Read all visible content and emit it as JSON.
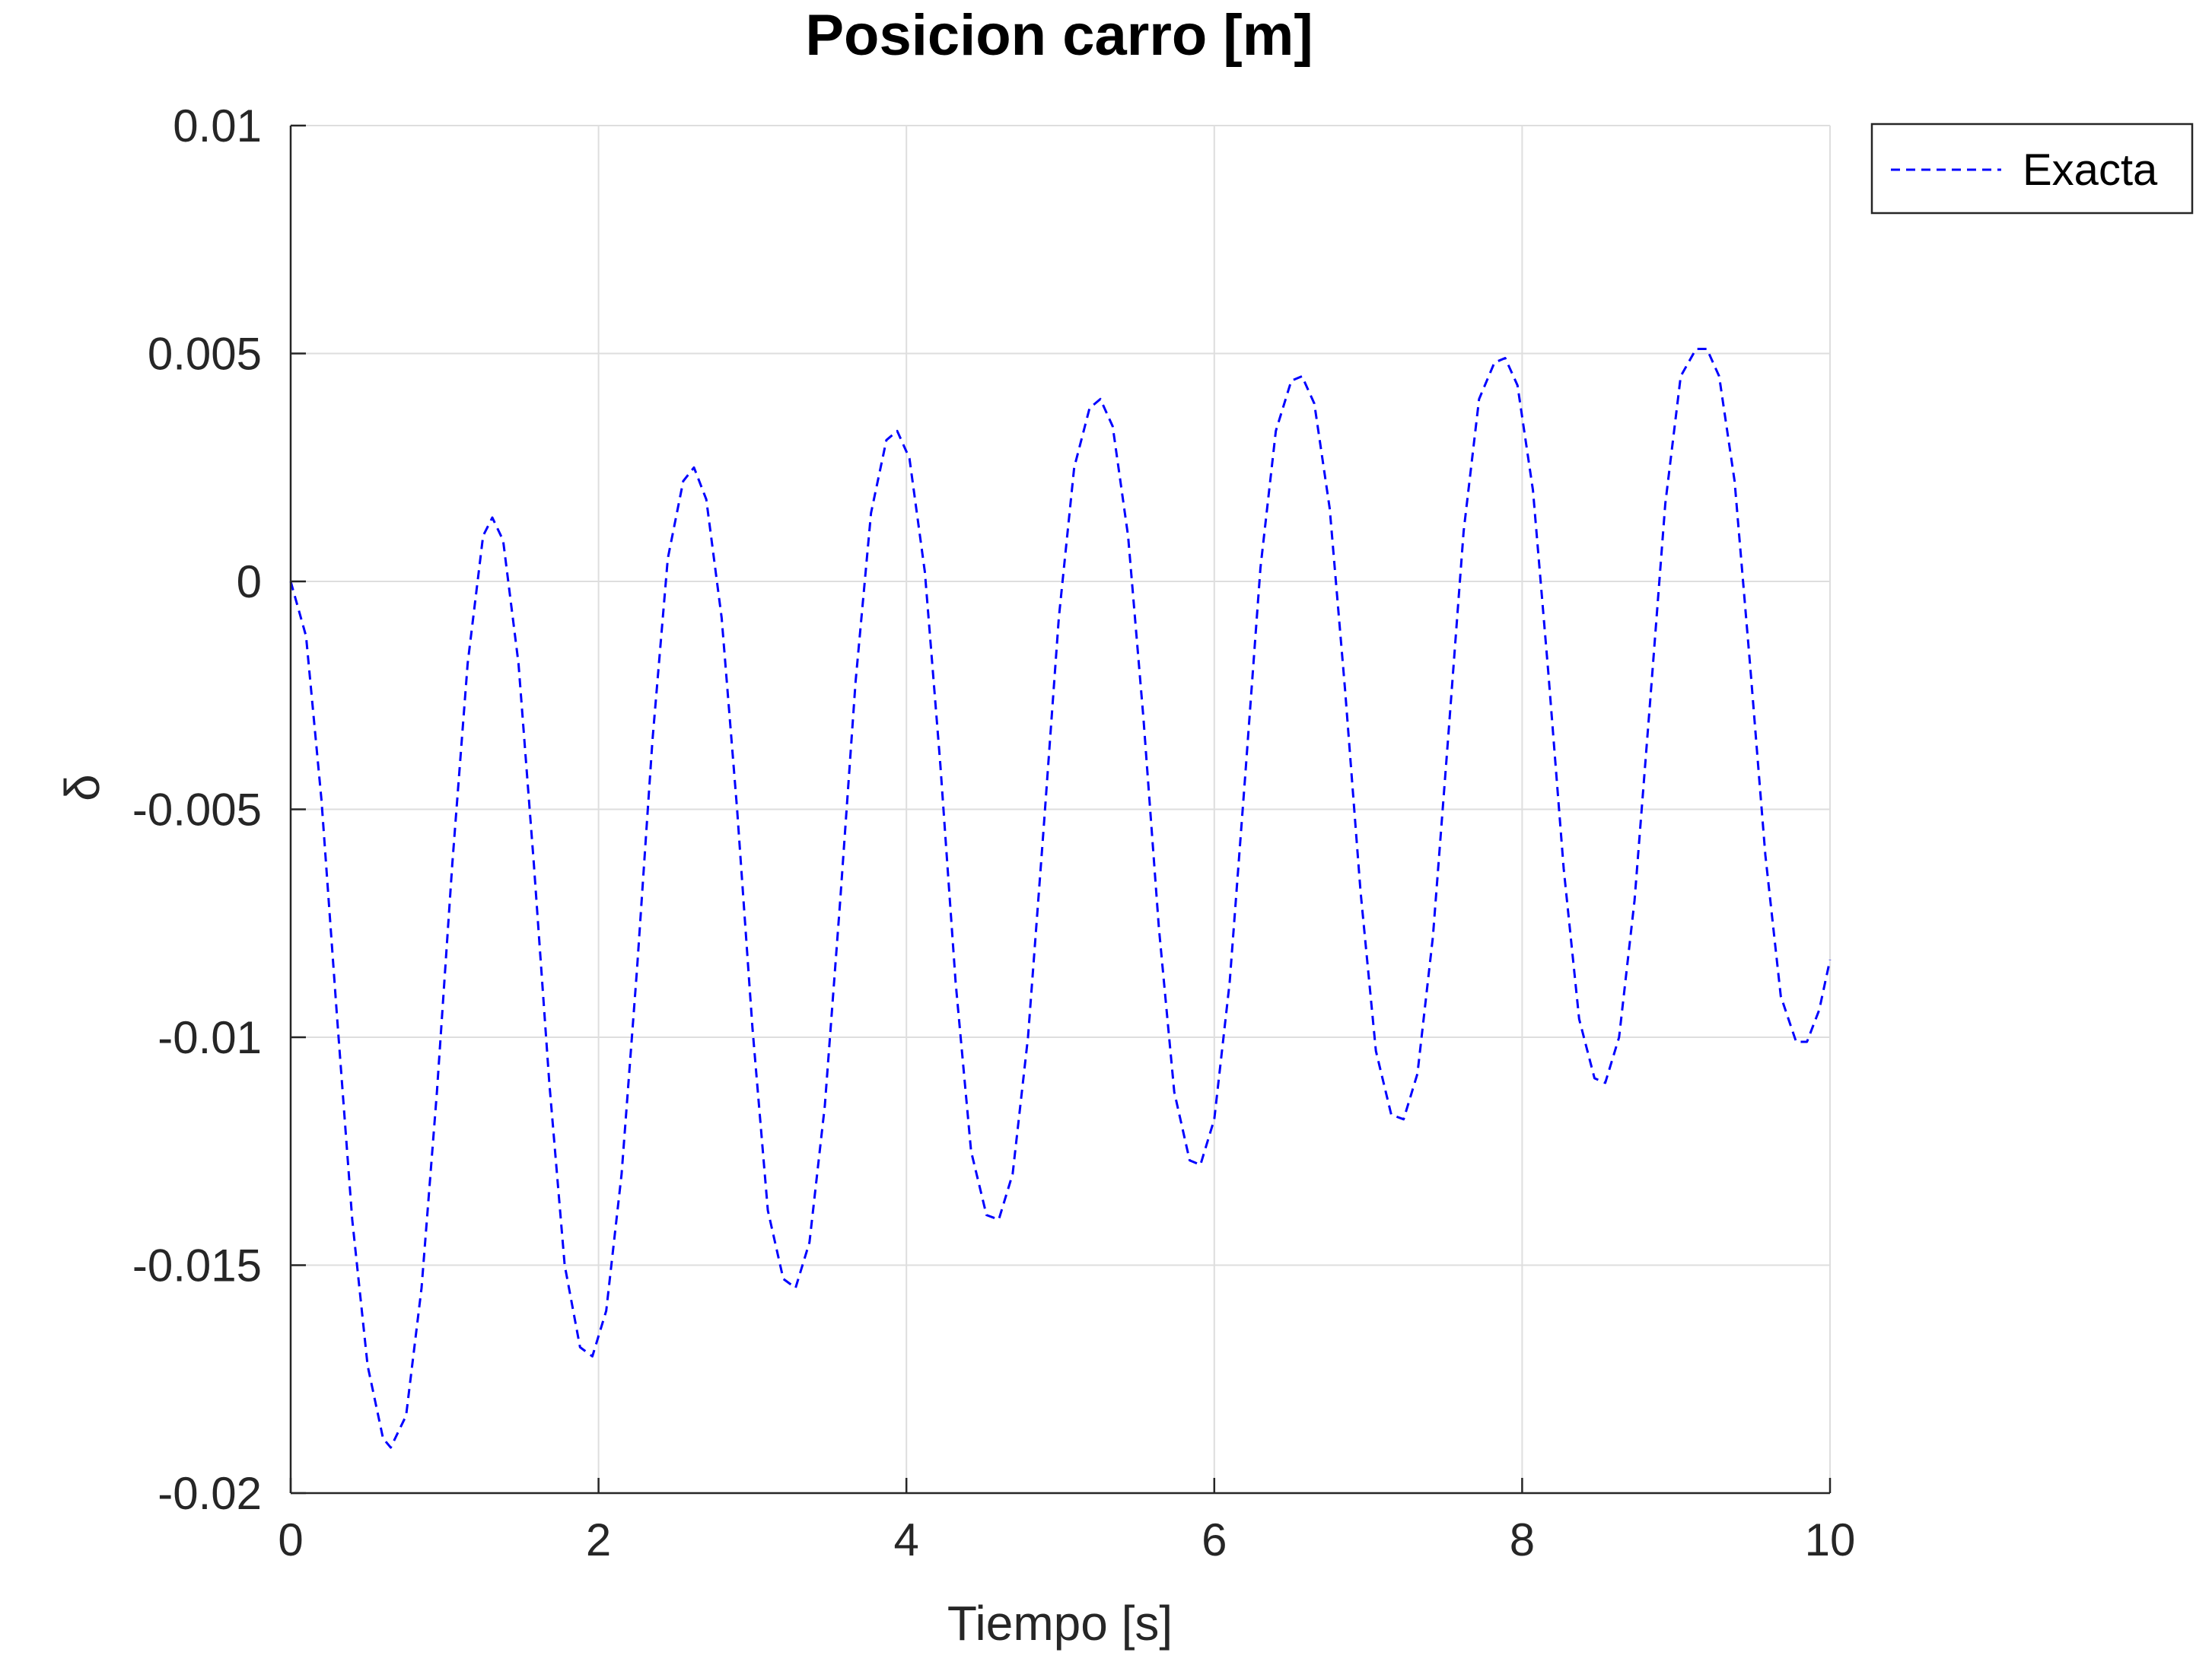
{
  "chart_data": {
    "type": "line",
    "title": "Posicion carro [m]",
    "xlabel": "Tiempo [s]",
    "ylabel": "δ",
    "xlim": [
      0,
      10
    ],
    "ylim": [
      -0.02,
      0.01
    ],
    "x_ticks": [
      0,
      2,
      4,
      6,
      8,
      10
    ],
    "x_tick_labels": [
      "0",
      "2",
      "4",
      "6",
      "8",
      "10"
    ],
    "y_ticks": [
      -0.02,
      -0.015,
      -0.01,
      -0.005,
      0,
      0.005,
      0.01
    ],
    "y_tick_labels": [
      "-0.02",
      "-0.015",
      "-0.01",
      "-0.005",
      "0",
      "0.005",
      "0.01"
    ],
    "grid": true,
    "legend": {
      "placement": "outside-top-right",
      "entries": [
        "Exacta"
      ]
    },
    "series": [
      {
        "name": "Exacta",
        "color": "#0000ff",
        "line_style": "dashed",
        "points": [
          [
            0.0,
            0.0
          ],
          [
            0.1,
            -0.0012
          ],
          [
            0.2,
            -0.0048
          ],
          [
            0.3,
            -0.0095
          ],
          [
            0.4,
            -0.014
          ],
          [
            0.5,
            -0.0172
          ],
          [
            0.6,
            -0.0188
          ],
          [
            0.65,
            -0.019
          ],
          [
            0.75,
            -0.0183
          ],
          [
            0.85,
            -0.0155
          ],
          [
            0.95,
            -0.0112
          ],
          [
            1.05,
            -0.0062
          ],
          [
            1.15,
            -0.0018
          ],
          [
            1.25,
            0.001
          ],
          [
            1.31,
            0.0014
          ],
          [
            1.38,
            0.0009
          ],
          [
            1.48,
            -0.0018
          ],
          [
            1.58,
            -0.0062
          ],
          [
            1.68,
            -0.011
          ],
          [
            1.78,
            -0.015
          ],
          [
            1.88,
            -0.0168
          ],
          [
            1.96,
            -0.017
          ],
          [
            2.05,
            -0.016
          ],
          [
            2.15,
            -0.013
          ],
          [
            2.25,
            -0.0085
          ],
          [
            2.35,
            -0.0035
          ],
          [
            2.45,
            0.0005
          ],
          [
            2.55,
            0.0022
          ],
          [
            2.62,
            0.0025
          ],
          [
            2.7,
            0.0018
          ],
          [
            2.8,
            -0.0008
          ],
          [
            2.9,
            -0.005
          ],
          [
            3.0,
            -0.0098
          ],
          [
            3.1,
            -0.0138
          ],
          [
            3.2,
            -0.0153
          ],
          [
            3.28,
            -0.0155
          ],
          [
            3.37,
            -0.0145
          ],
          [
            3.47,
            -0.0115
          ],
          [
            3.57,
            -0.007
          ],
          [
            3.67,
            -0.0022
          ],
          [
            3.77,
            0.0015
          ],
          [
            3.87,
            0.0031
          ],
          [
            3.94,
            0.0033
          ],
          [
            4.02,
            0.0027
          ],
          [
            4.12,
            0.0002
          ],
          [
            4.22,
            -0.004
          ],
          [
            4.32,
            -0.0088
          ],
          [
            4.42,
            -0.0125
          ],
          [
            4.52,
            -0.0139
          ],
          [
            4.6,
            -0.014
          ],
          [
            4.69,
            -0.013
          ],
          [
            4.79,
            -0.01
          ],
          [
            4.89,
            -0.0055
          ],
          [
            4.99,
            -0.0008
          ],
          [
            5.09,
            0.0025
          ],
          [
            5.19,
            0.0038
          ],
          [
            5.26,
            0.004
          ],
          [
            5.34,
            0.0034
          ],
          [
            5.44,
            0.001
          ],
          [
            5.54,
            -0.003
          ],
          [
            5.64,
            -0.0076
          ],
          [
            5.74,
            -0.0112
          ],
          [
            5.84,
            -0.0127
          ],
          [
            5.91,
            -0.0128
          ],
          [
            6.0,
            -0.0118
          ],
          [
            6.1,
            -0.0088
          ],
          [
            6.2,
            -0.0043
          ],
          [
            6.3,
            0.0003
          ],
          [
            6.4,
            0.0033
          ],
          [
            6.5,
            0.0044
          ],
          [
            6.57,
            0.0045
          ],
          [
            6.65,
            0.0039
          ],
          [
            6.75,
            0.0016
          ],
          [
            6.85,
            -0.0024
          ],
          [
            6.95,
            -0.0068
          ],
          [
            7.05,
            -0.0103
          ],
          [
            7.15,
            -0.0117
          ],
          [
            7.23,
            -0.0118
          ],
          [
            7.32,
            -0.0108
          ],
          [
            7.42,
            -0.0078
          ],
          [
            7.52,
            -0.0034
          ],
          [
            7.62,
            0.0011
          ],
          [
            7.72,
            0.004
          ],
          [
            7.82,
            0.0048
          ],
          [
            7.89,
            0.0049
          ],
          [
            7.97,
            0.0043
          ],
          [
            8.07,
            0.002
          ],
          [
            8.17,
            -0.002
          ],
          [
            8.27,
            -0.0063
          ],
          [
            8.37,
            -0.0096
          ],
          [
            8.47,
            -0.0109
          ],
          [
            8.54,
            -0.011
          ],
          [
            8.63,
            -0.01
          ],
          [
            8.73,
            -0.007
          ],
          [
            8.83,
            -0.0027
          ],
          [
            8.93,
            0.0017
          ],
          [
            9.03,
            0.0045
          ],
          [
            9.13,
            0.0051
          ],
          [
            9.2,
            0.0051
          ],
          [
            9.28,
            0.0045
          ],
          [
            9.38,
            0.0022
          ],
          [
            9.48,
            -0.0018
          ],
          [
            9.58,
            -0.006
          ],
          [
            9.68,
            -0.0091
          ],
          [
            9.78,
            -0.0101
          ],
          [
            9.85,
            -0.0101
          ],
          [
            9.93,
            -0.0094
          ],
          [
            10.0,
            -0.0083
          ]
        ]
      }
    ]
  }
}
